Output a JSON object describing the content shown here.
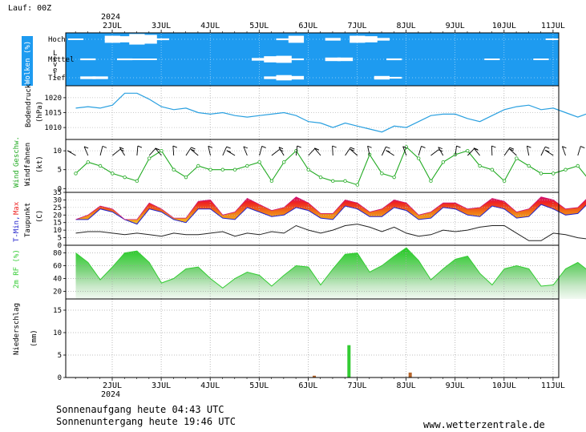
{
  "run_label": "Lauf: 00Z",
  "year": "2024",
  "days": [
    "2JUL",
    "3JUL",
    "4JUL",
    "5JUL",
    "6JUL",
    "7JUL",
    "8JUL",
    "9JUL",
    "10JUL",
    "11JUL"
  ],
  "sunrise": "Sonnenaufgang heute 04:43 UTC",
  "sunset": "Sonnenuntergang heute 19:46 UTC",
  "website": "www.wetterzentrale.de",
  "colors": {
    "cloud_bg": "#1e9bf0",
    "pressure": "#2aa0e0",
    "wind": "#22aa22",
    "tmin": "#2222cc",
    "tmax": "#ee2222",
    "dewpoint": "#222222",
    "rh": "#33cc33",
    "precip_green": "#33cc33",
    "precip_brown": "#b5652a"
  },
  "chart_data": [
    {
      "panel": "clouds",
      "type": "area",
      "ylabel": "Wolken (%)",
      "level_label": "L e v e l",
      "levels": [
        "Hoch",
        "Mittel",
        "Tief"
      ],
      "x_start": "2024-07-01 06:00",
      "step_hours": 6,
      "series": [
        {
          "name": "Hoch",
          "values": [
            5,
            0,
            0,
            40,
            35,
            60,
            50,
            10,
            0,
            0,
            0,
            0,
            0,
            0,
            0,
            0,
            0,
            10,
            40,
            0,
            0,
            15,
            0,
            40,
            35,
            15,
            0,
            0,
            0,
            0,
            0,
            0,
            0,
            0,
            0,
            0,
            0,
            0,
            0,
            5
          ]
        },
        {
          "name": "Mittel",
          "values": [
            0,
            10,
            0,
            0,
            10,
            5,
            5,
            0,
            0,
            0,
            0,
            0,
            0,
            0,
            0,
            15,
            35,
            40,
            10,
            0,
            0,
            20,
            20,
            0,
            0,
            0,
            10,
            0,
            0,
            0,
            0,
            0,
            0,
            0,
            5,
            0,
            0,
            0,
            5,
            0
          ]
        },
        {
          "name": "Tief",
          "values": [
            0,
            15,
            15,
            0,
            0,
            0,
            0,
            0,
            0,
            0,
            0,
            0,
            0,
            0,
            0,
            0,
            15,
            30,
            20,
            0,
            0,
            0,
            0,
            0,
            0,
            20,
            10,
            0,
            0,
            0,
            0,
            0,
            0,
            0,
            0,
            0,
            0,
            0,
            0,
            0
          ]
        }
      ]
    },
    {
      "panel": "pressure",
      "type": "line",
      "ylabel": "Bodendruck",
      "unit": "(hPa)",
      "yticks": [
        1010,
        1015,
        1020
      ],
      "ylim": [
        1006,
        1024
      ],
      "x_start": "2024-07-01 06:00",
      "step_hours": 6,
      "values": [
        1016.5,
        1017,
        1016.5,
        1017.5,
        1021.5,
        1021.5,
        1019.5,
        1017,
        1016,
        1016.5,
        1015,
        1014.5,
        1015,
        1014,
        1013.5,
        1014,
        1014.5,
        1015,
        1014,
        1012,
        1011.5,
        1010,
        1011.5,
        1010.5,
        1009.5,
        1008.5,
        1010.5,
        1010,
        1012,
        1014,
        1014.5,
        1014.5,
        1013,
        1012,
        1014,
        1016,
        1017,
        1017.5,
        1016,
        1016.5,
        1015,
        1013.5,
        1015,
        1015,
        1013.5,
        1011.5,
        1013
      ]
    },
    {
      "panel": "wind",
      "type": "line",
      "ylabel": [
        "Wind",
        "Geschw."
      ],
      "ylabel2": "Windfahnen",
      "unit": "(kt)",
      "yticks": [
        0,
        5,
        10
      ],
      "ylim": [
        -1,
        13
      ],
      "x_start": "2024-07-01 06:00",
      "step_hours": 6,
      "values": [
        4,
        7,
        6,
        4,
        3,
        2,
        8,
        10,
        5,
        3,
        6,
        5,
        5,
        5,
        6,
        7,
        2,
        7,
        10,
        5,
        3,
        2,
        2,
        1,
        9,
        4,
        3,
        11,
        8,
        2,
        7,
        9,
        10,
        6,
        5,
        2,
        8,
        6,
        4,
        4,
        5,
        6,
        2,
        5,
        7,
        5,
        4,
        10,
        1
      ]
    },
    {
      "panel": "temperature",
      "type": "area",
      "ylabel": [
        "T-Min,",
        "Max"
      ],
      "ylabel2": "Taupunkt",
      "unit": "(C)",
      "yticks": [
        0,
        5,
        10,
        15,
        20,
        25,
        30,
        35
      ],
      "ylim": [
        0,
        35
      ],
      "x_start": "2024-07-01 06:00",
      "step_hours": 6,
      "series": [
        {
          "name": "T-Min",
          "values": [
            17,
            17,
            24,
            22,
            17,
            14,
            24,
            22,
            17,
            15,
            24,
            24,
            18,
            17,
            25,
            22,
            19,
            20,
            25,
            23,
            18,
            17,
            26,
            24,
            19,
            19,
            25,
            23,
            17,
            18,
            25,
            24,
            20,
            19,
            26,
            24,
            18,
            19,
            27,
            24,
            20,
            21,
            29,
            25,
            23
          ]
        },
        {
          "name": "Max",
          "values": [
            17,
            20,
            26,
            24,
            17,
            17,
            28,
            24,
            18,
            18,
            29,
            30,
            20,
            22,
            31,
            27,
            23,
            25,
            32,
            28,
            21,
            21,
            30,
            28,
            22,
            24,
            30,
            28,
            20,
            22,
            28,
            28,
            24,
            25,
            31,
            29,
            22,
            24,
            32,
            30,
            24,
            25,
            33,
            29,
            26
          ]
        },
        {
          "name": "Taupunkt",
          "values": [
            8,
            9,
            9,
            8,
            7,
            8,
            7,
            6,
            8,
            7,
            7,
            8,
            9,
            6,
            8,
            7,
            9,
            8,
            13,
            10,
            8,
            10,
            13,
            14,
            12,
            9,
            12,
            8,
            6,
            7,
            10,
            9,
            10,
            12,
            13,
            13,
            8,
            3,
            3,
            8,
            7,
            5,
            4,
            6,
            8
          ]
        }
      ]
    },
    {
      "panel": "humidity",
      "type": "area",
      "ylabel": "2m RF (%)",
      "yticks": [
        20,
        40,
        60,
        80
      ],
      "ylim": [
        8,
        92
      ],
      "x_start": "2024-07-01 06:00",
      "step_hours": 6,
      "values": [
        80,
        65,
        38,
        58,
        80,
        83,
        65,
        33,
        40,
        55,
        58,
        40,
        25,
        40,
        50,
        45,
        28,
        45,
        60,
        58,
        30,
        55,
        78,
        80,
        50,
        60,
        75,
        88,
        68,
        38,
        55,
        70,
        75,
        48,
        30,
        55,
        60,
        55,
        28,
        30,
        55,
        65,
        50,
        25,
        30,
        45
      ]
    },
    {
      "panel": "precipitation",
      "type": "bar",
      "ylabel": "Niederschlag",
      "unit": "(mm)",
      "yticks": [
        0,
        5,
        10,
        15
      ],
      "ylim": [
        0,
        17.5
      ],
      "bars": [
        {
          "x": "6JUL",
          "hour": 3,
          "value": 0.4,
          "color": "brown"
        },
        {
          "x": "6JUL",
          "hour": 20,
          "value": 7.2,
          "color": "green"
        },
        {
          "x": "8JUL",
          "hour": 2,
          "value": 1.1,
          "color": "brown"
        }
      ]
    }
  ]
}
